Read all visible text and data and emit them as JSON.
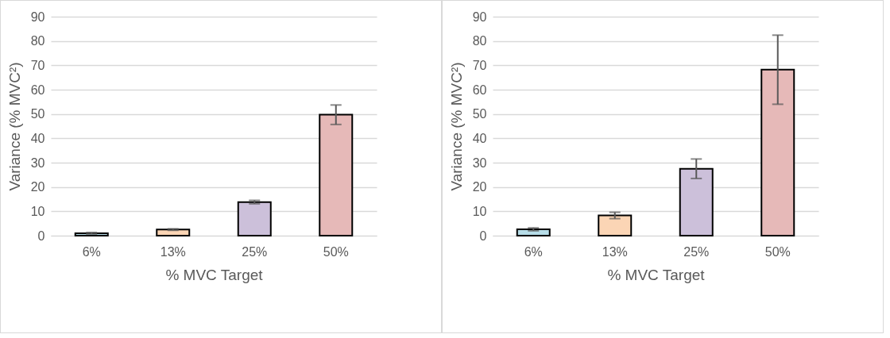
{
  "chart_data": [
    {
      "type": "bar",
      "categories": [
        "6%",
        "13%",
        "25%",
        "50%"
      ],
      "values": [
        1,
        2.5,
        13.8,
        49.7
      ],
      "errors": [
        0.3,
        0.3,
        0.7,
        4
      ],
      "colors": [
        "#b7dde8",
        "#fbd5b5",
        "#ccc0da",
        "#e6b9b8"
      ],
      "xlabel": "% MVC Target",
      "ylabel": "Variance (% MVC²)",
      "ylim": [
        0,
        90
      ],
      "yticks": [
        0,
        10,
        20,
        30,
        40,
        50,
        60,
        70,
        80,
        90
      ],
      "grid": "y"
    },
    {
      "type": "bar",
      "categories": [
        "6%",
        "13%",
        "25%",
        "50%"
      ],
      "values": [
        2.6,
        8.3,
        27.5,
        68.2
      ],
      "errors": [
        0.6,
        1.3,
        4,
        14.2
      ],
      "colors": [
        "#b7dde8",
        "#fbd5b5",
        "#ccc0da",
        "#e6b9b8"
      ],
      "xlabel": "% MVC Target",
      "ylabel": "Variance (% MVC²)",
      "ylim": [
        0,
        90
      ],
      "yticks": [
        0,
        10,
        20,
        30,
        40,
        50,
        60,
        70,
        80,
        90
      ],
      "grid": "y"
    }
  ]
}
